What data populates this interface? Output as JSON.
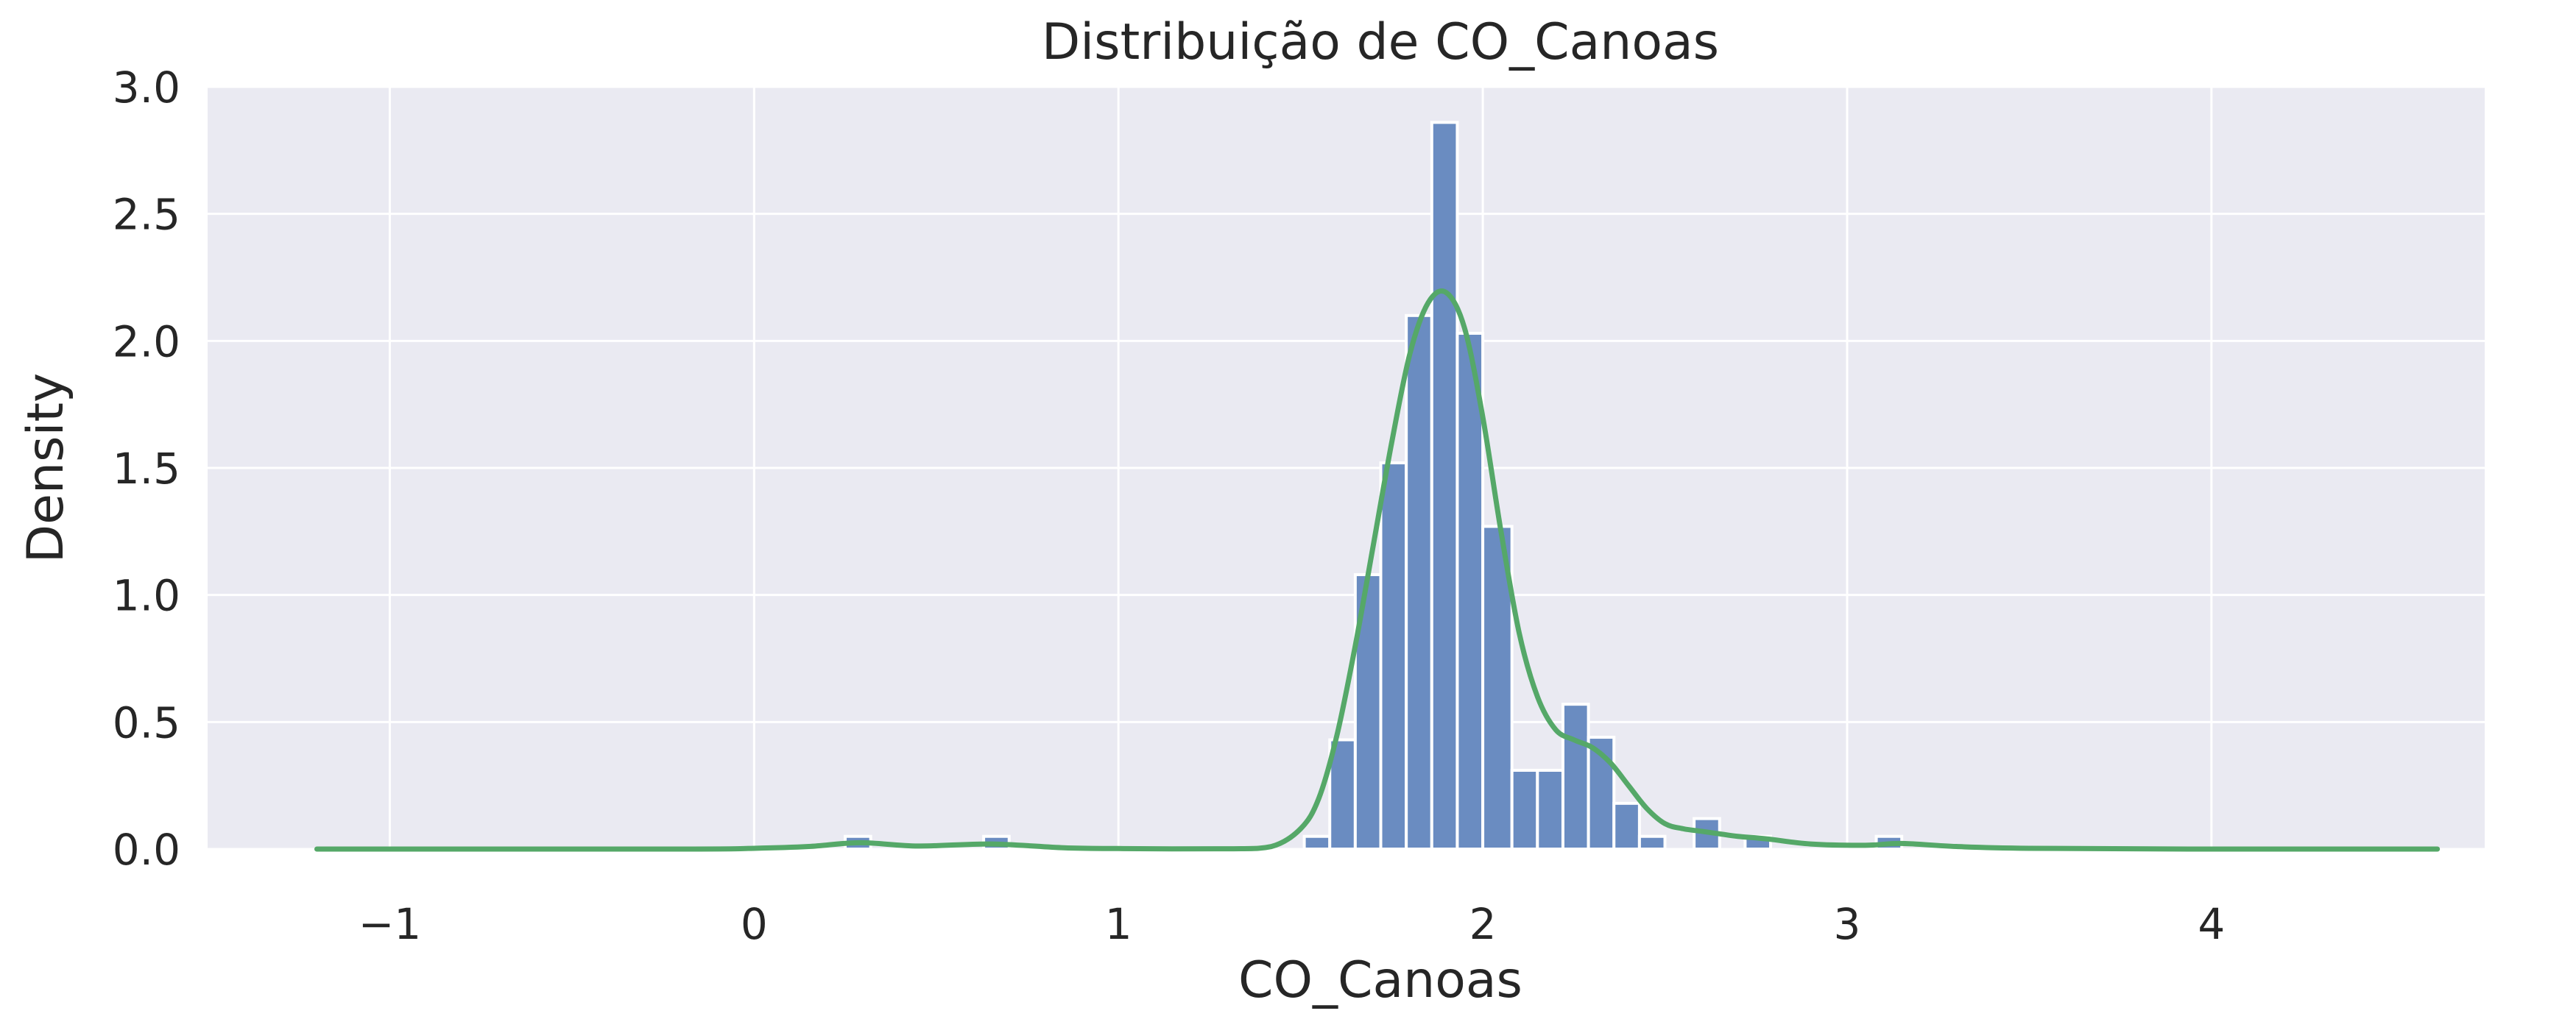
{
  "chart_data": {
    "type": "bar",
    "title": "Distribuição de CO_Canoas",
    "xlabel": "CO_Canoas",
    "ylabel": "Density",
    "xlim": [
      -1.5,
      4.75
    ],
    "ylim": [
      0,
      3.0
    ],
    "xticks": [
      -1,
      0,
      1,
      2,
      3,
      4
    ],
    "xtick_labels": [
      "−1",
      "0",
      "1",
      "2",
      "3",
      "4"
    ],
    "yticks": [
      0.0,
      0.5,
      1.0,
      1.5,
      2.0,
      2.5,
      3.0
    ],
    "ytick_labels": [
      "0.0",
      "0.5",
      "1.0",
      "1.5",
      "2.0",
      "2.5",
      "3.0"
    ],
    "grid": true,
    "bar_color": "#6a8cc1",
    "kde_color": "#55a868",
    "background_color": "#eaeaf2",
    "histogram": {
      "bins": [
        {
          "x0": 0.25,
          "x1": 0.32,
          "density": 0.05
        },
        {
          "x0": 0.63,
          "x1": 0.7,
          "density": 0.05
        },
        {
          "x0": 1.51,
          "x1": 1.58,
          "density": 0.05
        },
        {
          "x0": 1.58,
          "x1": 1.65,
          "density": 0.43
        },
        {
          "x0": 1.65,
          "x1": 1.72,
          "density": 1.08
        },
        {
          "x0": 1.72,
          "x1": 1.79,
          "density": 1.52
        },
        {
          "x0": 1.79,
          "x1": 1.86,
          "density": 2.1
        },
        {
          "x0": 1.86,
          "x1": 1.93,
          "density": 2.86
        },
        {
          "x0": 1.93,
          "x1": 2.0,
          "density": 2.03
        },
        {
          "x0": 2.0,
          "x1": 2.08,
          "density": 1.27
        },
        {
          "x0": 2.08,
          "x1": 2.15,
          "density": 0.31
        },
        {
          "x0": 2.15,
          "x1": 2.22,
          "density": 0.31
        },
        {
          "x0": 2.22,
          "x1": 2.29,
          "density": 0.57
        },
        {
          "x0": 2.29,
          "x1": 2.36,
          "density": 0.44
        },
        {
          "x0": 2.36,
          "x1": 2.43,
          "density": 0.18
        },
        {
          "x0": 2.43,
          "x1": 2.5,
          "density": 0.05
        },
        {
          "x0": 2.58,
          "x1": 2.65,
          "density": 0.12
        },
        {
          "x0": 2.72,
          "x1": 2.79,
          "density": 0.05
        },
        {
          "x0": 3.08,
          "x1": 3.15,
          "density": 0.05
        }
      ]
    },
    "kde": {
      "x": [
        -1.2,
        -0.2,
        0.0,
        0.15,
        0.29,
        0.45,
        0.65,
        0.85,
        1.0,
        1.3,
        1.42,
        1.5,
        1.55,
        1.6,
        1.65,
        1.7,
        1.75,
        1.8,
        1.85,
        1.9,
        1.95,
        2.0,
        2.05,
        2.1,
        2.15,
        2.2,
        2.25,
        2.3,
        2.35,
        2.4,
        2.45,
        2.5,
        2.55,
        2.6,
        2.65,
        2.7,
        2.78,
        2.9,
        3.05,
        3.15,
        3.3,
        3.5,
        4.0,
        4.62
      ],
      "y": [
        0.0,
        0.0,
        0.003,
        0.01,
        0.025,
        0.012,
        0.02,
        0.005,
        0.002,
        0.001,
        0.01,
        0.08,
        0.2,
        0.45,
        0.8,
        1.2,
        1.6,
        1.95,
        2.15,
        2.19,
        2.05,
        1.7,
        1.25,
        0.85,
        0.6,
        0.47,
        0.43,
        0.4,
        0.34,
        0.25,
        0.16,
        0.1,
        0.08,
        0.07,
        0.06,
        0.05,
        0.04,
        0.02,
        0.015,
        0.022,
        0.01,
        0.003,
        0.0,
        0.0
      ]
    }
  }
}
